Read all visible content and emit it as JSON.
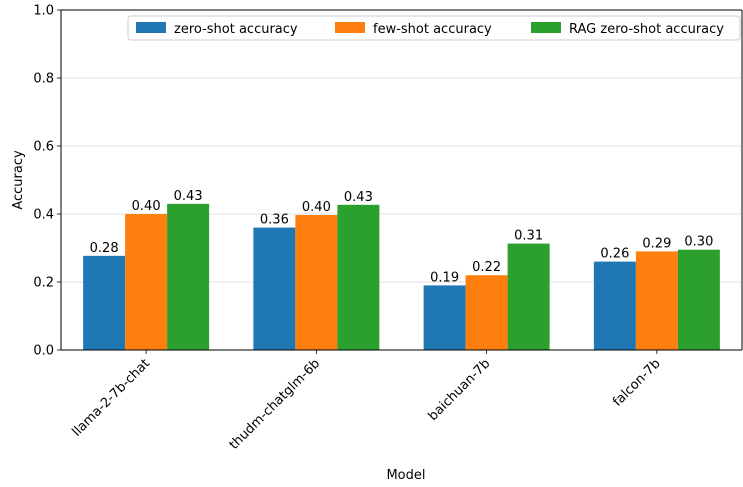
{
  "chart_data": {
    "type": "bar",
    "xlabel": "Model",
    "ylabel": "Accuracy",
    "ylim": [
      0,
      1.0
    ],
    "yticks": [
      "0.0",
      "0.2",
      "0.4",
      "0.6",
      "0.8",
      "1.0"
    ],
    "grid": "horizontal",
    "legend_position": "top-right",
    "categories": [
      "llama-2-7b-chat",
      "thudm-chatglm-6b",
      "baichuan-7b",
      "falcon-7b"
    ],
    "series": [
      {
        "name": "zero-shot accuracy",
        "color": "#1f77b4",
        "values": [
          0.277,
          0.36,
          0.19,
          0.26
        ],
        "labels": [
          "0.28",
          "0.36",
          "0.19",
          "0.26"
        ]
      },
      {
        "name": "few-shot accuracy",
        "color": "#ff7f0e",
        "values": [
          0.4,
          0.397,
          0.22,
          0.29
        ],
        "labels": [
          "0.40",
          "0.40",
          "0.22",
          "0.29"
        ]
      },
      {
        "name": "RAG zero-shot accuracy",
        "color": "#2ca02c",
        "values": [
          0.43,
          0.427,
          0.313,
          0.295
        ],
        "labels": [
          "0.43",
          "0.43",
          "0.31",
          "0.30"
        ]
      }
    ]
  }
}
